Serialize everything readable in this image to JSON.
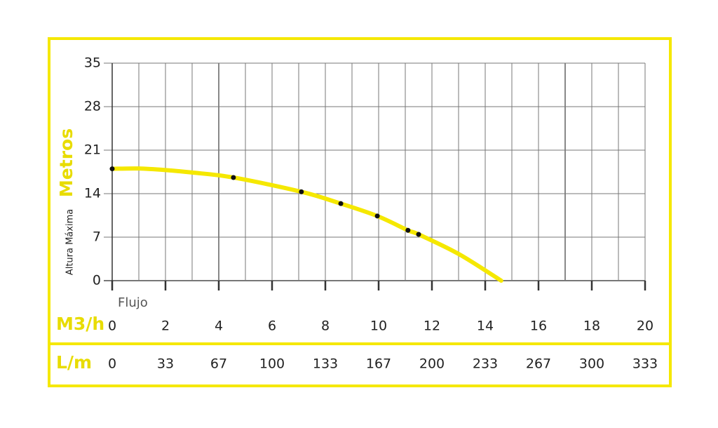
{
  "chart_data": {
    "type": "line",
    "y_label_small": "Altura Máxima",
    "y_label": "Metros",
    "x_label_small": "Flujo",
    "x_label": "M3/h",
    "x2_label": "L/m",
    "ylim": [
      0,
      35
    ],
    "yticks": [
      0,
      7,
      14,
      21,
      28,
      35
    ],
    "xlim": [
      0,
      20
    ],
    "xticks": [
      0,
      2,
      4,
      6,
      8,
      10,
      12,
      14,
      16,
      18,
      20
    ],
    "x2ticks": [
      0,
      33,
      67,
      100,
      133,
      167,
      200,
      233,
      267,
      300,
      333
    ],
    "xgrid": [
      0,
      1,
      2,
      3,
      4,
      5,
      6,
      7,
      8,
      9,
      10,
      11,
      12,
      13,
      14,
      15,
      16,
      17,
      18,
      19,
      20
    ],
    "xgrid_dark": [
      4,
      17
    ],
    "grid": true,
    "series": [
      {
        "color": "#f5e800",
        "x": [
          0,
          1,
          2,
          3,
          4.55,
          7.1,
          8.58,
          9.95,
          11.1,
          11.5,
          13,
          14.6
        ],
        "values": [
          18,
          18.05,
          17.8,
          17.4,
          16.6,
          14.3,
          12.4,
          10.4,
          8.1,
          7.45,
          4.3,
          0
        ]
      },
      {
        "color": "#111111",
        "markers": true,
        "x": [
          0,
          4.55,
          7.1,
          8.58,
          9.95,
          11.1,
          11.5
        ],
        "values": [
          18,
          16.6,
          14.3,
          12.4,
          10.4,
          8.1,
          7.45
        ]
      }
    ]
  }
}
